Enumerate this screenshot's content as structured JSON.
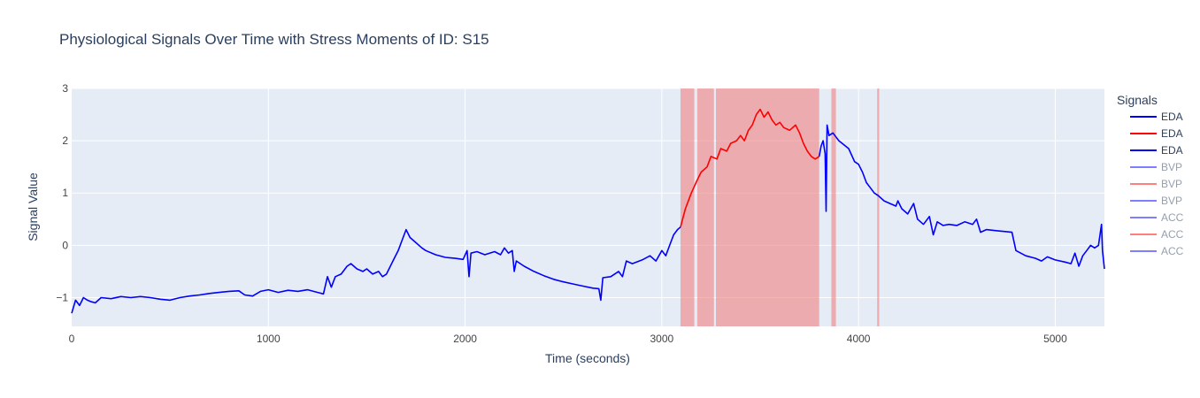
{
  "chart_data": {
    "type": "line",
    "title": "Physiological Signals Over Time with Stress Moments of ID: S15",
    "xlabel": "Time (seconds)",
    "ylabel": "Signal Value",
    "xlim": [
      0,
      5250
    ],
    "ylim": [
      -1.55,
      3
    ],
    "x_ticks": [
      "0",
      "1000",
      "2000",
      "3000",
      "4000",
      "5000"
    ],
    "y_ticks": [
      "−1",
      "0",
      "1",
      "2",
      "3"
    ],
    "grid": true,
    "legend_title": "Signals",
    "legend_position": "right",
    "colors": {
      "background": "#e5ecf6",
      "grid": "#ffffff",
      "normal": "#0000ff",
      "stress": "#ff0000",
      "stress_band": "#f08080"
    },
    "legend": [
      {
        "name": "EDA",
        "color": "#0000ff",
        "faded": false
      },
      {
        "name": "EDA",
        "color": "#ff0000",
        "faded": false
      },
      {
        "name": "EDA",
        "color": "#0000ff",
        "faded": false
      },
      {
        "name": "BVP",
        "color": "#0000ff",
        "faded": true
      },
      {
        "name": "BVP",
        "color": "#ff0000",
        "faded": true
      },
      {
        "name": "BVP",
        "color": "#0000ff",
        "faded": true
      },
      {
        "name": "ACC",
        "color": "#0000ff",
        "faded": true
      },
      {
        "name": "ACC",
        "color": "#ff0000",
        "faded": true
      },
      {
        "name": "ACC",
        "color": "#0000ff",
        "faded": true
      }
    ],
    "stress_intervals": [
      [
        3095,
        3165
      ],
      [
        3180,
        3265
      ],
      [
        3275,
        3800
      ],
      [
        3862,
        3885
      ],
      [
        4095,
        4105
      ]
    ],
    "series": [
      {
        "color": "#0000ff",
        "points": [
          [
            0,
            -1.3
          ],
          [
            20,
            -1.05
          ],
          [
            40,
            -1.15
          ],
          [
            60,
            -1.0
          ],
          [
            80,
            -1.05
          ],
          [
            100,
            -1.08
          ],
          [
            120,
            -1.1
          ],
          [
            150,
            -1.0
          ],
          [
            200,
            -1.02
          ],
          [
            250,
            -0.98
          ],
          [
            300,
            -1.0
          ],
          [
            350,
            -0.98
          ],
          [
            400,
            -1.0
          ],
          [
            450,
            -1.03
          ],
          [
            500,
            -1.05
          ],
          [
            550,
            -1.0
          ],
          [
            600,
            -0.97
          ],
          [
            650,
            -0.95
          ],
          [
            700,
            -0.92
          ],
          [
            750,
            -0.9
          ],
          [
            800,
            -0.88
          ],
          [
            850,
            -0.87
          ],
          [
            880,
            -0.95
          ],
          [
            920,
            -0.97
          ],
          [
            960,
            -0.88
          ],
          [
            1000,
            -0.85
          ],
          [
            1050,
            -0.9
          ],
          [
            1100,
            -0.86
          ],
          [
            1150,
            -0.88
          ],
          [
            1200,
            -0.85
          ],
          [
            1250,
            -0.9
          ],
          [
            1280,
            -0.93
          ],
          [
            1300,
            -0.6
          ],
          [
            1320,
            -0.8
          ],
          [
            1340,
            -0.6
          ],
          [
            1370,
            -0.55
          ],
          [
            1400,
            -0.4
          ],
          [
            1420,
            -0.35
          ],
          [
            1450,
            -0.45
          ],
          [
            1480,
            -0.5
          ],
          [
            1500,
            -0.45
          ],
          [
            1530,
            -0.55
          ],
          [
            1560,
            -0.5
          ],
          [
            1580,
            -0.6
          ],
          [
            1600,
            -0.55
          ],
          [
            1620,
            -0.4
          ],
          [
            1640,
            -0.25
          ],
          [
            1660,
            -0.1
          ],
          [
            1680,
            0.1
          ],
          [
            1700,
            0.3
          ],
          [
            1720,
            0.15
          ],
          [
            1750,
            0.05
          ],
          [
            1780,
            -0.05
          ],
          [
            1800,
            -0.1
          ],
          [
            1850,
            -0.18
          ],
          [
            1900,
            -0.23
          ],
          [
            1950,
            -0.25
          ],
          [
            1990,
            -0.27
          ],
          [
            2010,
            -0.1
          ],
          [
            2020,
            -0.6
          ],
          [
            2030,
            -0.15
          ],
          [
            2060,
            -0.12
          ],
          [
            2100,
            -0.18
          ],
          [
            2150,
            -0.12
          ],
          [
            2180,
            -0.18
          ],
          [
            2200,
            -0.05
          ],
          [
            2220,
            -0.15
          ],
          [
            2240,
            -0.1
          ],
          [
            2250,
            -0.5
          ],
          [
            2260,
            -0.3
          ],
          [
            2300,
            -0.4
          ],
          [
            2350,
            -0.5
          ],
          [
            2400,
            -0.58
          ],
          [
            2450,
            -0.65
          ],
          [
            2500,
            -0.7
          ],
          [
            2550,
            -0.74
          ],
          [
            2600,
            -0.78
          ],
          [
            2650,
            -0.82
          ],
          [
            2680,
            -0.83
          ],
          [
            2690,
            -1.05
          ],
          [
            2700,
            -0.62
          ],
          [
            2740,
            -0.6
          ],
          [
            2780,
            -0.5
          ],
          [
            2800,
            -0.6
          ],
          [
            2820,
            -0.3
          ],
          [
            2850,
            -0.35
          ],
          [
            2900,
            -0.28
          ],
          [
            2940,
            -0.2
          ],
          [
            2970,
            -0.3
          ],
          [
            3000,
            -0.1
          ],
          [
            3020,
            -0.2
          ],
          [
            3040,
            0.0
          ],
          [
            3060,
            0.2
          ],
          [
            3080,
            0.3
          ],
          [
            3095,
            0.35
          ]
        ]
      },
      {
        "color": "#ff0000",
        "points": [
          [
            3095,
            0.35
          ],
          [
            3120,
            0.7
          ],
          [
            3150,
            1.0
          ],
          [
            3180,
            1.25
          ],
          [
            3200,
            1.4
          ],
          [
            3230,
            1.5
          ],
          [
            3250,
            1.7
          ],
          [
            3280,
            1.65
          ],
          [
            3300,
            1.85
          ],
          [
            3330,
            1.8
          ],
          [
            3350,
            1.95
          ],
          [
            3380,
            2.0
          ],
          [
            3400,
            2.1
          ],
          [
            3420,
            2.0
          ],
          [
            3440,
            2.2
          ],
          [
            3460,
            2.3
          ],
          [
            3480,
            2.5
          ],
          [
            3500,
            2.6
          ],
          [
            3520,
            2.45
          ],
          [
            3540,
            2.55
          ],
          [
            3560,
            2.4
          ],
          [
            3580,
            2.3
          ],
          [
            3600,
            2.35
          ],
          [
            3620,
            2.25
          ],
          [
            3650,
            2.2
          ],
          [
            3680,
            2.3
          ],
          [
            3700,
            2.15
          ],
          [
            3720,
            1.95
          ],
          [
            3740,
            1.8
          ],
          [
            3760,
            1.7
          ],
          [
            3780,
            1.65
          ],
          [
            3800,
            1.7
          ]
        ]
      },
      {
        "color": "#0000ff",
        "points": [
          [
            3800,
            1.7
          ],
          [
            3810,
            1.9
          ],
          [
            3820,
            2.0
          ],
          [
            3830,
            1.75
          ],
          [
            3835,
            0.65
          ],
          [
            3840,
            2.3
          ],
          [
            3850,
            2.1
          ],
          [
            3870,
            2.15
          ],
          [
            3900,
            2.0
          ],
          [
            3950,
            1.85
          ],
          [
            3980,
            1.6
          ],
          [
            4000,
            1.55
          ],
          [
            4020,
            1.4
          ],
          [
            4040,
            1.2
          ],
          [
            4060,
            1.1
          ],
          [
            4080,
            1.0
          ],
          [
            4100,
            0.95
          ],
          [
            4130,
            0.85
          ],
          [
            4160,
            0.8
          ],
          [
            4190,
            0.75
          ],
          [
            4200,
            0.85
          ],
          [
            4220,
            0.7
          ],
          [
            4250,
            0.6
          ],
          [
            4280,
            0.8
          ],
          [
            4300,
            0.5
          ],
          [
            4330,
            0.4
          ],
          [
            4360,
            0.55
          ],
          [
            4380,
            0.2
          ],
          [
            4400,
            0.45
          ],
          [
            4430,
            0.38
          ],
          [
            4460,
            0.4
          ],
          [
            4500,
            0.38
          ],
          [
            4540,
            0.45
          ],
          [
            4580,
            0.4
          ],
          [
            4600,
            0.5
          ],
          [
            4620,
            0.25
          ],
          [
            4650,
            0.3
          ],
          [
            4700,
            0.28
          ],
          [
            4780,
            0.25
          ],
          [
            4800,
            -0.1
          ],
          [
            4850,
            -0.2
          ],
          [
            4900,
            -0.25
          ],
          [
            4930,
            -0.3
          ],
          [
            4960,
            -0.22
          ],
          [
            5000,
            -0.28
          ],
          [
            5050,
            -0.32
          ],
          [
            5080,
            -0.35
          ],
          [
            5100,
            -0.15
          ],
          [
            5120,
            -0.4
          ],
          [
            5140,
            -0.2
          ],
          [
            5160,
            -0.1
          ],
          [
            5180,
            0.0
          ],
          [
            5200,
            -0.05
          ],
          [
            5220,
            0.0
          ],
          [
            5235,
            0.4
          ],
          [
            5240,
            -0.1
          ],
          [
            5250,
            -0.45
          ]
        ]
      }
    ]
  }
}
